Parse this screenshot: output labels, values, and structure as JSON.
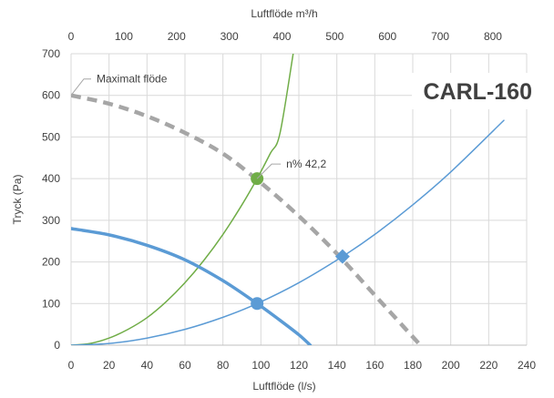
{
  "chart_data": {
    "type": "line",
    "title": "CARL-160",
    "xlabel": "Luftflöde (l/s)",
    "ylabel": "Tryck (Pa)",
    "x2label": "Luftflöde m³/h",
    "xlim": [
      0,
      240
    ],
    "ylim": [
      0,
      700
    ],
    "x2lim": [
      0,
      864
    ],
    "x_ticks": [
      0,
      20,
      40,
      60,
      80,
      100,
      120,
      140,
      160,
      180,
      200,
      220,
      240
    ],
    "y_ticks": [
      0,
      100,
      200,
      300,
      400,
      500,
      600,
      700
    ],
    "x2_ticks": [
      0,
      100,
      200,
      300,
      400,
      500,
      600,
      700,
      800
    ],
    "grid": true,
    "series": [
      {
        "name": "Maximalt flöde",
        "color": "#a6a6a6",
        "style": "dashed",
        "x": [
          0,
          20,
          40,
          60,
          80,
          100,
          120,
          140,
          160,
          175,
          184
        ],
        "y": [
          600,
          580,
          550,
          510,
          460,
          390,
          310,
          220,
          120,
          45,
          0
        ]
      },
      {
        "name": "",
        "color": "#70ad47",
        "style": "solid",
        "x": [
          0,
          10,
          20,
          30,
          40,
          50,
          60,
          70,
          80,
          90,
          98,
          105,
          110,
          117
        ],
        "y": [
          0,
          4,
          17,
          38,
          66,
          104,
          150,
          204,
          266,
          337,
          400,
          461,
          508,
          700
        ]
      },
      {
        "name": "",
        "color": "#5b9bd5",
        "style": "solid",
        "x": [
          0,
          20,
          40,
          60,
          80,
          98,
          120,
          143,
          160,
          180,
          200,
          228
        ],
        "y": [
          0,
          4,
          17,
          38,
          67,
          100,
          150,
          213,
          266,
          337,
          416,
          540
        ]
      },
      {
        "name": "",
        "color": "#5b9bd5",
        "style": "bold",
        "x": [
          0,
          20,
          40,
          60,
          80,
          98,
          110,
          120,
          126
        ],
        "y": [
          280,
          265,
          240,
          205,
          155,
          100,
          60,
          25,
          0
        ]
      }
    ],
    "markers": [
      {
        "shape": "circle",
        "color": "#70ad47",
        "x": 98,
        "y": 400
      },
      {
        "shape": "circle",
        "color": "#5b9bd5",
        "x": 98,
        "y": 100
      },
      {
        "shape": "diamond",
        "color": "#5b9bd5",
        "x": 143,
        "y": 213
      }
    ],
    "annotations": [
      {
        "text": "Maximalt flöde",
        "x": 0,
        "y": 600
      },
      {
        "text": "n% 42,2",
        "x": 98,
        "y": 400
      }
    ]
  }
}
